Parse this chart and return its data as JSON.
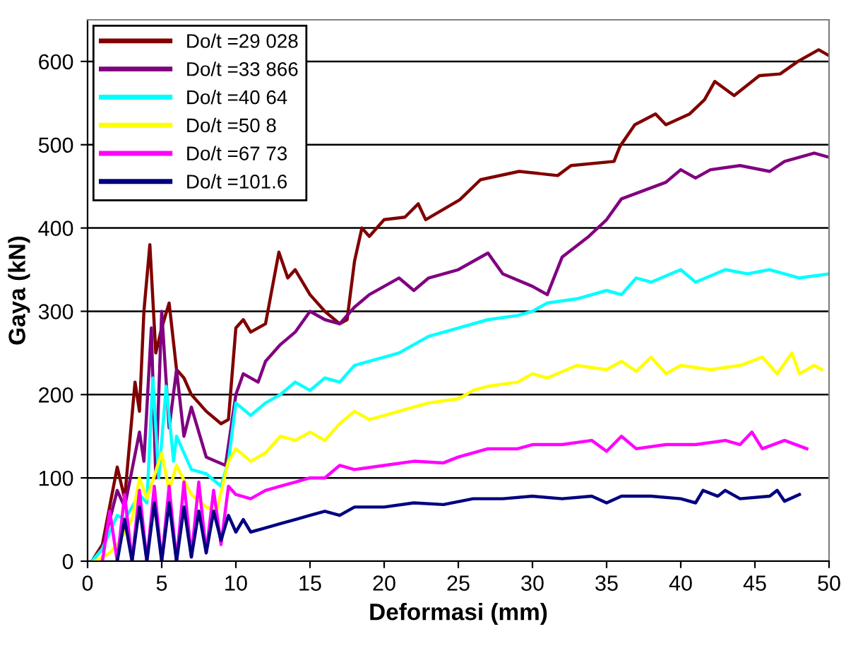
{
  "chart_data": {
    "type": "line",
    "xlabel": "Deformasi (mm)",
    "ylabel": "Gaya (kN)",
    "xlim": [
      0,
      50
    ],
    "xticks": [
      0,
      5,
      10,
      15,
      20,
      25,
      30,
      35,
      40,
      45,
      50
    ],
    "ylim": [
      0,
      650
    ],
    "yticks": [
      0,
      100,
      200,
      300,
      400,
      500,
      600
    ],
    "grid": "y",
    "legend": "top left",
    "marker": "none",
    "line_style": "solid",
    "series": [
      {
        "name": "Do/t =29 028",
        "color": "#800000",
        "x": [
          0.3,
          1,
          2,
          2.5,
          3.2,
          3.5,
          3.8,
          4.2,
          4.6,
          5,
          5.5,
          6,
          6.5,
          7,
          8,
          9,
          9.5,
          10,
          10.5,
          11,
          12,
          12.9,
          13.5,
          14,
          15,
          16,
          17,
          17.5,
          18,
          18.5,
          19,
          20,
          21.4,
          22.3,
          22.8,
          25.1,
          26.5,
          29.1,
          31.7,
          32.6,
          35.5,
          35.9,
          36.9,
          38.3,
          39,
          40.6,
          41.6,
          42.3,
          43.6,
          45.3,
          46.7,
          47.9,
          49.3,
          49.9
        ],
        "values": [
          0,
          20,
          113,
          75,
          215,
          180,
          300,
          380,
          250,
          280,
          310,
          230,
          220,
          200,
          180,
          165,
          170,
          280,
          290,
          275,
          285,
          371,
          340,
          350,
          320,
          300,
          285,
          290,
          360,
          400,
          390,
          410,
          413,
          429,
          410,
          434,
          458,
          468,
          463,
          475,
          480,
          498,
          524,
          537,
          524,
          537,
          554,
          576,
          559,
          583,
          585,
          600,
          614,
          608
        ]
      },
      {
        "name": "Do/t =33 866",
        "color": "#800080",
        "x": [
          0.3,
          1,
          2,
          2.5,
          3.5,
          3.8,
          4.3,
          4.6,
          5,
          5.5,
          6,
          6.5,
          7,
          8,
          9.3,
          10,
          10.5,
          11.5,
          12,
          13,
          14,
          15,
          16,
          17,
          18,
          19,
          20,
          21,
          22,
          23,
          25,
          27,
          28,
          30,
          31,
          32,
          33.8,
          35,
          36,
          37.5,
          39,
          40,
          41,
          42,
          44,
          46,
          47,
          49,
          50
        ],
        "values": [
          0,
          15,
          85,
          65,
          155,
          120,
          280,
          100,
          300,
          160,
          230,
          150,
          185,
          125,
          115,
          200,
          225,
          215,
          240,
          260,
          275,
          300,
          290,
          285,
          305,
          320,
          330,
          340,
          325,
          340,
          350,
          370,
          345,
          330,
          320,
          365,
          390,
          410,
          435,
          445,
          455,
          470,
          460,
          470,
          475,
          468,
          480,
          490,
          485
        ]
      },
      {
        "name": "Do/t =40 64",
        "color": "#00ffff",
        "x": [
          0.3,
          1,
          2,
          2.5,
          3.5,
          4,
          4.4,
          4.8,
          5.3,
          5.8,
          6,
          7,
          8,
          9,
          9.5,
          10,
          11,
          12,
          13,
          14,
          15,
          16,
          17,
          18,
          19,
          20,
          21,
          22,
          23,
          25,
          27,
          29,
          30,
          31,
          33,
          35,
          36,
          37,
          38,
          40,
          41,
          43,
          44.5,
          46,
          48,
          50
        ],
        "values": [
          0,
          15,
          55,
          50,
          80,
          70,
          220,
          100,
          210,
          120,
          150,
          110,
          105,
          90,
          120,
          190,
          175,
          190,
          200,
          215,
          205,
          220,
          215,
          235,
          240,
          245,
          250,
          260,
          270,
          280,
          290,
          295,
          300,
          310,
          315,
          325,
          320,
          340,
          335,
          350,
          335,
          350,
          345,
          350,
          340,
          345
        ]
      },
      {
        "name": "Do/t =50 8",
        "color": "#ffff00",
        "x": [
          0.5,
          1.5,
          2,
          2.5,
          3,
          3.5,
          4,
          5,
          5.5,
          6,
          7,
          8,
          8.7,
          9.5,
          10,
          11,
          12,
          13,
          14,
          15,
          16,
          17,
          18,
          19,
          20,
          22,
          23,
          25,
          26,
          27,
          29,
          30,
          31,
          33,
          35,
          36,
          37,
          38,
          39,
          40,
          42,
          44,
          45.5,
          46.5,
          47.5,
          48,
          49,
          49.5
        ],
        "values": [
          0,
          10,
          20,
          35,
          50,
          100,
          75,
          130,
          85,
          115,
          80,
          65,
          60,
          120,
          135,
          120,
          130,
          150,
          145,
          155,
          145,
          165,
          180,
          170,
          175,
          185,
          190,
          195,
          205,
          210,
          215,
          225,
          220,
          235,
          230,
          240,
          228,
          245,
          225,
          235,
          230,
          235,
          245,
          225,
          250,
          225,
          235,
          230
        ]
      },
      {
        "name": "Do/t =67 73",
        "color": "#ff00ff",
        "x": [
          1,
          1.5,
          2,
          2.5,
          3,
          3.5,
          4,
          4.5,
          5,
          5.5,
          6,
          6.5,
          7,
          7.5,
          8,
          8.5,
          9,
          9.5,
          10,
          11,
          12,
          13,
          14,
          15,
          16,
          17,
          18,
          20,
          22,
          24,
          25,
          27,
          29,
          30,
          32,
          34,
          35,
          36,
          37,
          39,
          41,
          43,
          44,
          44.8,
          45.5,
          47,
          48.5
        ],
        "values": [
          0,
          60,
          0,
          80,
          0,
          85,
          0,
          90,
          0,
          90,
          0,
          95,
          5,
          95,
          10,
          85,
          20,
          90,
          80,
          75,
          85,
          90,
          95,
          100,
          100,
          115,
          110,
          115,
          120,
          118,
          125,
          135,
          135,
          140,
          140,
          145,
          132,
          150,
          135,
          140,
          140,
          145,
          140,
          155,
          135,
          145,
          135
        ]
      },
      {
        "name": "Do/t =101.6",
        "color": "#000080",
        "x": [
          2,
          2.5,
          3,
          3.5,
          4,
          4.5,
          5,
          5.5,
          6,
          6.5,
          7,
          7.5,
          8,
          8.5,
          9,
          9.5,
          10,
          10.5,
          11,
          12,
          13,
          14,
          15,
          16,
          17,
          18,
          20,
          22,
          24,
          26,
          28,
          30,
          32,
          34,
          35,
          36,
          38,
          40,
          41,
          41.5,
          42.5,
          43,
          44,
          46,
          46.5,
          47,
          48
        ],
        "values": [
          0,
          50,
          0,
          65,
          0,
          70,
          0,
          70,
          0,
          65,
          5,
          60,
          10,
          60,
          25,
          55,
          35,
          50,
          35,
          40,
          45,
          50,
          55,
          60,
          55,
          65,
          65,
          70,
          68,
          75,
          75,
          78,
          75,
          78,
          70,
          78,
          78,
          75,
          70,
          85,
          78,
          85,
          75,
          78,
          85,
          72,
          80
        ]
      }
    ]
  }
}
